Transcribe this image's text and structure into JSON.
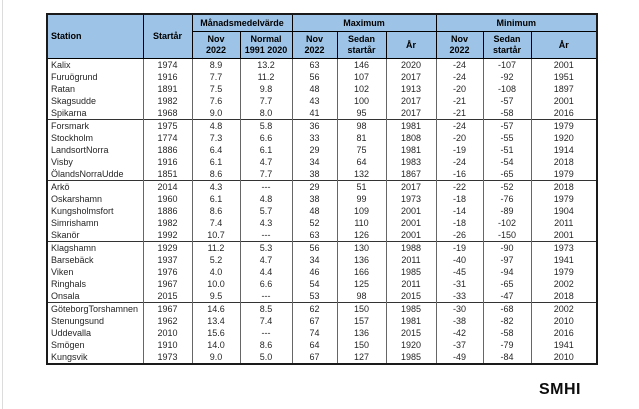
{
  "table": {
    "header": {
      "station": "Station",
      "startar": "Startår",
      "manadsmedelvarde": "Månadsmedelvärde",
      "maximum": "Maximum",
      "minimum": "Minimum",
      "nov_2022": "Nov\n2022",
      "normal_1991_2020": "Normal\n1991 2020",
      "sedan_startar": "Sedan\nstartår",
      "ar": "År"
    },
    "groups": [
      {
        "rows": [
          [
            "Kalix",
            "1974",
            "8.9",
            "13.2",
            "63",
            "146",
            "2020",
            "-24",
            "-107",
            "2001"
          ],
          [
            "Furuögrund",
            "1916",
            "7.7",
            "11.2",
            "56",
            "107",
            "2017",
            "-24",
            "-92",
            "1951"
          ],
          [
            "Ratan",
            "1891",
            "7.5",
            "9.8",
            "48",
            "102",
            "1913",
            "-20",
            "-108",
            "1897"
          ],
          [
            "Skagsudde",
            "1982",
            "7.6",
            "7.7",
            "43",
            "100",
            "2017",
            "-21",
            "-57",
            "2001"
          ],
          [
            "Spikarna",
            "1968",
            "9.0",
            "8.0",
            "41",
            "95",
            "2017",
            "-21",
            "-58",
            "2016"
          ]
        ]
      },
      {
        "rows": [
          [
            "Forsmark",
            "1975",
            "4.8",
            "5.8",
            "36",
            "98",
            "1981",
            "-24",
            "-57",
            "1979"
          ],
          [
            "Stockholm",
            "1774",
            "7.3",
            "6.6",
            "33",
            "81",
            "1808",
            "-20",
            "-55",
            "1920"
          ],
          [
            "LandsortNorra",
            "1886",
            "6.4",
            "6.1",
            "29",
            "75",
            "1981",
            "-19",
            "-51",
            "1914"
          ],
          [
            "Visby",
            "1916",
            "6.1",
            "4.7",
            "34",
            "64",
            "1983",
            "-24",
            "-54",
            "2018"
          ],
          [
            "ÖlandsNorraUdde",
            "1851",
            "8.6",
            "7.7",
            "38",
            "132",
            "1867",
            "-16",
            "-65",
            "1979"
          ]
        ]
      },
      {
        "rows": [
          [
            "Arkö",
            "2014",
            "4.3",
            "---",
            "29",
            "51",
            "2017",
            "-22",
            "-52",
            "2018"
          ],
          [
            "Oskarshamn",
            "1960",
            "6.1",
            "4.8",
            "38",
            "99",
            "1973",
            "-18",
            "-76",
            "1979"
          ],
          [
            "Kungsholmsfort",
            "1886",
            "8.6",
            "5.7",
            "48",
            "109",
            "2001",
            "-14",
            "-89",
            "1904"
          ],
          [
            "Simrishamn",
            "1982",
            "7.4",
            "4.3",
            "52",
            "110",
            "2001",
            "-18",
            "-102",
            "2011"
          ],
          [
            "Skanör",
            "1992",
            "10.7",
            "---",
            "63",
            "126",
            "2001",
            "-26",
            "-150",
            "2001"
          ]
        ]
      },
      {
        "rows": [
          [
            "Klagshamn",
            "1929",
            "11.2",
            "5.3",
            "56",
            "130",
            "1988",
            "-19",
            "-90",
            "1973"
          ],
          [
            "Barsebäck",
            "1937",
            "5.2",
            "4.7",
            "34",
            "136",
            "2011",
            "-40",
            "-97",
            "1941"
          ],
          [
            "Viken",
            "1976",
            "4.0",
            "4.4",
            "46",
            "166",
            "1985",
            "-45",
            "-94",
            "1979"
          ],
          [
            "Ringhals",
            "1967",
            "10.0",
            "6.6",
            "54",
            "125",
            "2011",
            "-31",
            "-65",
            "2002"
          ],
          [
            "Onsala",
            "2015",
            "9.5",
            "---",
            "53",
            "98",
            "2015",
            "-33",
            "-47",
            "2018"
          ]
        ]
      },
      {
        "rows": [
          [
            "GöteborgTorshamnen",
            "1967",
            "14.6",
            "8.5",
            "62",
            "150",
            "1985",
            "-30",
            "-68",
            "2002"
          ],
          [
            "Stenungsund",
            "1962",
            "13.4",
            "7.4",
            "67",
            "157",
            "1981",
            "-38",
            "-82",
            "2010"
          ],
          [
            "Uddevalla",
            "2010",
            "15.6",
            "---",
            "74",
            "136",
            "2015",
            "-42",
            "-58",
            "2016"
          ],
          [
            "Smögen",
            "1910",
            "14.0",
            "8.6",
            "64",
            "150",
            "1920",
            "-37",
            "-79",
            "1941"
          ],
          [
            "Kungsvik",
            "1973",
            "9.0",
            "5.0",
            "67",
            "127",
            "1985",
            "-49",
            "-84",
            "2010"
          ]
        ]
      }
    ]
  },
  "footer": {
    "logo": "SMHI"
  },
  "colors": {
    "header_bg": "#9DC3E6",
    "header_border": "#000000",
    "body_border": "#666666",
    "text": "#262626",
    "background": "#ffffff"
  }
}
